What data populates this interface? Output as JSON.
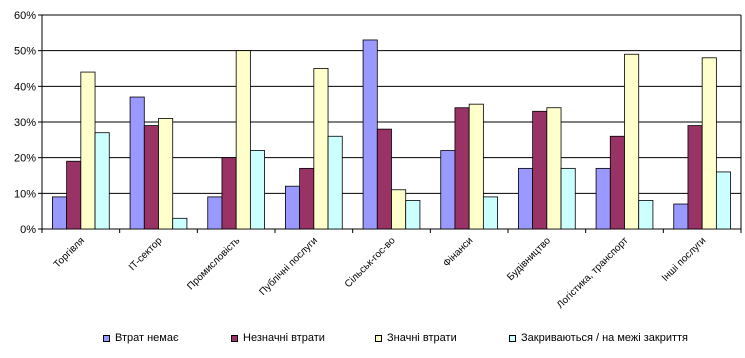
{
  "chart_data": {
    "type": "bar",
    "categories": [
      "Торгівля",
      "IT-сектор",
      "Промисловість",
      "Публічні послуги",
      "Сільськ-гос-во",
      "Фінанси",
      "Будівництво",
      "Логістика, транспорт",
      "Інші послуги"
    ],
    "series": [
      {
        "name": "Втрат немає",
        "color": "#9999ff",
        "values": [
          9,
          37,
          9,
          12,
          53,
          22,
          17,
          17,
          7
        ]
      },
      {
        "name": "Незначні втрати",
        "color": "#993366",
        "values": [
          19,
          29,
          20,
          17,
          28,
          34,
          33,
          26,
          29
        ]
      },
      {
        "name": "Значні втрати",
        "color": "#ffffcc",
        "values": [
          44,
          31,
          50,
          45,
          11,
          35,
          34,
          49,
          48
        ]
      },
      {
        "name": "Закриваються / на межі закриття",
        "color": "#ccffff",
        "values": [
          27,
          3,
          22,
          26,
          8,
          9,
          17,
          8,
          16
        ]
      }
    ],
    "yticks": [
      "0%",
      "10%",
      "20%",
      "30%",
      "40%",
      "50%",
      "60%"
    ],
    "ylim": [
      0,
      60
    ],
    "grid": true,
    "legend": "bottom"
  }
}
